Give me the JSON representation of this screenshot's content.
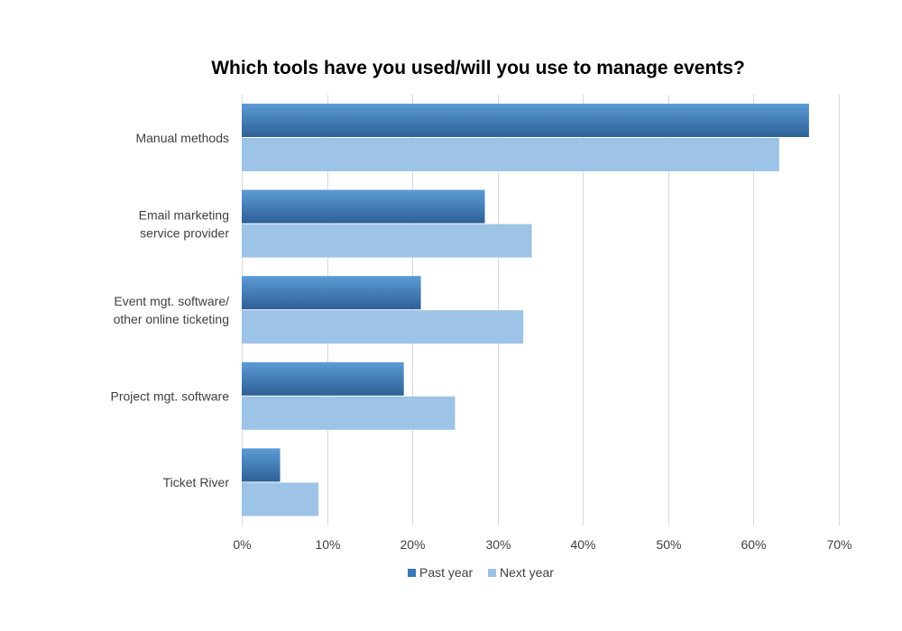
{
  "chart_data": {
    "type": "bar",
    "orientation": "horizontal",
    "title": "Which tools have you used/will you use to manage events?",
    "xlabel": "",
    "ylabel": "",
    "categories": [
      [
        "Manual methods"
      ],
      [
        "Email marketing",
        "service provider"
      ],
      [
        "Event mgt. software/",
        "other online ticketing"
      ],
      [
        "Project mgt. software"
      ],
      [
        "Ticket River"
      ]
    ],
    "series": [
      {
        "name": "Past year",
        "values": [
          66.5,
          28.5,
          21,
          19,
          4.5
        ],
        "color": "#3a78b8"
      },
      {
        "name": "Next year",
        "values": [
          63,
          34,
          33,
          25,
          9
        ],
        "color": "#9dc3e6"
      }
    ],
    "xlim": [
      0,
      70
    ],
    "xticks": [
      0,
      10,
      20,
      30,
      40,
      50,
      60,
      70
    ],
    "tick_format": "percent",
    "grid": true,
    "legend_position": "bottom"
  }
}
